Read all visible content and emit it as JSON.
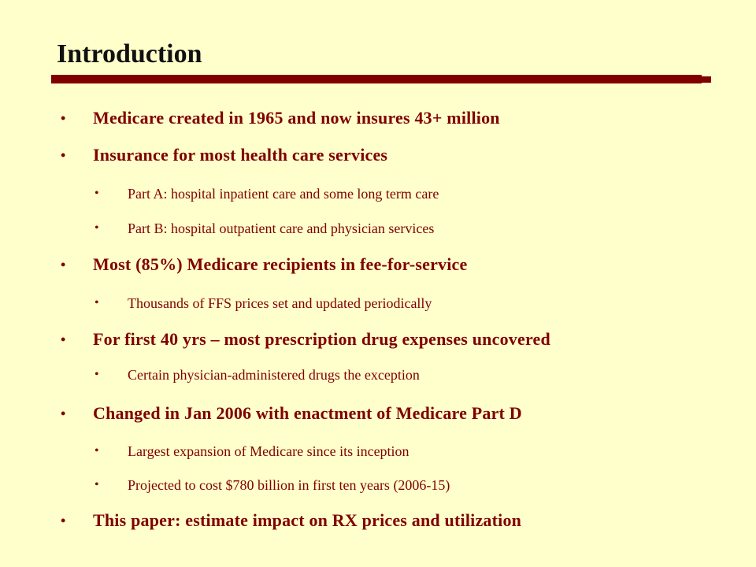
{
  "slide": {
    "title": "Introduction",
    "bullet_char": "•",
    "colors": {
      "background": "#ffffcc",
      "title_text": "#111111",
      "rule": "#800000",
      "bullet_text": "#800000"
    },
    "items": [
      {
        "level": 1,
        "text": "Medicare created in 1965 and now insures 43+ million"
      },
      {
        "level": 1,
        "text": "Insurance for most health care services"
      },
      {
        "level": 2,
        "text": "Part A: hospital inpatient care and some long term care"
      },
      {
        "level": 2,
        "text": "Part B: hospital outpatient care and physician services"
      },
      {
        "level": 1,
        "text": "Most (85%) Medicare recipients in fee-for-service"
      },
      {
        "level": 2,
        "text": "Thousands of FFS prices set and updated periodically"
      },
      {
        "level": 1,
        "text": "For first 40 yrs – most prescription drug expenses uncovered"
      },
      {
        "level": 2,
        "text": "Certain physician-administered drugs the exception"
      },
      {
        "level": 1,
        "text": "Changed in Jan 2006 with enactment of Medicare Part D"
      },
      {
        "level": 2,
        "text": "Largest expansion of Medicare since its inception"
      },
      {
        "level": 2,
        "text": "Projected to cost $780 billion in first ten years (2006-15)"
      },
      {
        "level": 1,
        "text": "This paper: estimate impact on RX prices and utilization"
      }
    ]
  }
}
